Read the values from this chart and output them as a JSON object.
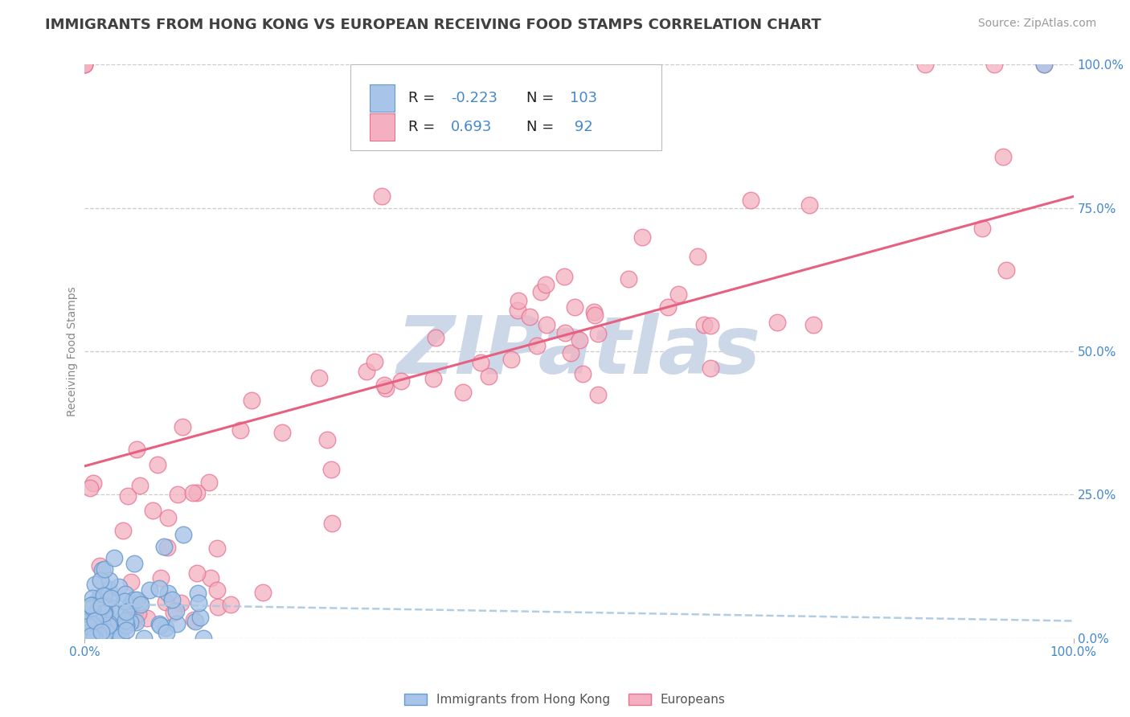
{
  "title": "IMMIGRANTS FROM HONG KONG VS EUROPEAN RECEIVING FOOD STAMPS CORRELATION CHART",
  "source": "Source: ZipAtlas.com",
  "ylabel": "Receiving Food Stamps",
  "legend_hk": {
    "R": -0.223,
    "N": 103,
    "label": "Immigrants from Hong Kong"
  },
  "legend_eu": {
    "R": 0.693,
    "N": 92,
    "label": "Europeans"
  },
  "right_ytick_labels": [
    "0.0%",
    "25.0%",
    "50.0%",
    "75.0%",
    "100.0%"
  ],
  "right_ytick_values": [
    0.0,
    0.25,
    0.5,
    0.75,
    1.0
  ],
  "hk_color": "#a8c4e8",
  "hk_edge": "#6699cc",
  "eu_color": "#f4b0c0",
  "eu_edge": "#e87090",
  "reg_hk_color": "#aac8e0",
  "reg_eu_color": "#e86080",
  "watermark": "ZIPatlas",
  "watermark_color": "#ccd8e8",
  "background_color": "#ffffff",
  "grid_color": "#cccccc",
  "title_color": "#404040",
  "axis_label_color": "#4488cc",
  "reg_hk_slope": -0.03,
  "reg_hk_intercept": 0.06,
  "reg_eu_slope": 0.47,
  "reg_eu_intercept": 0.3,
  "title_fontsize": 13,
  "source_fontsize": 10,
  "tick_fontsize": 11
}
